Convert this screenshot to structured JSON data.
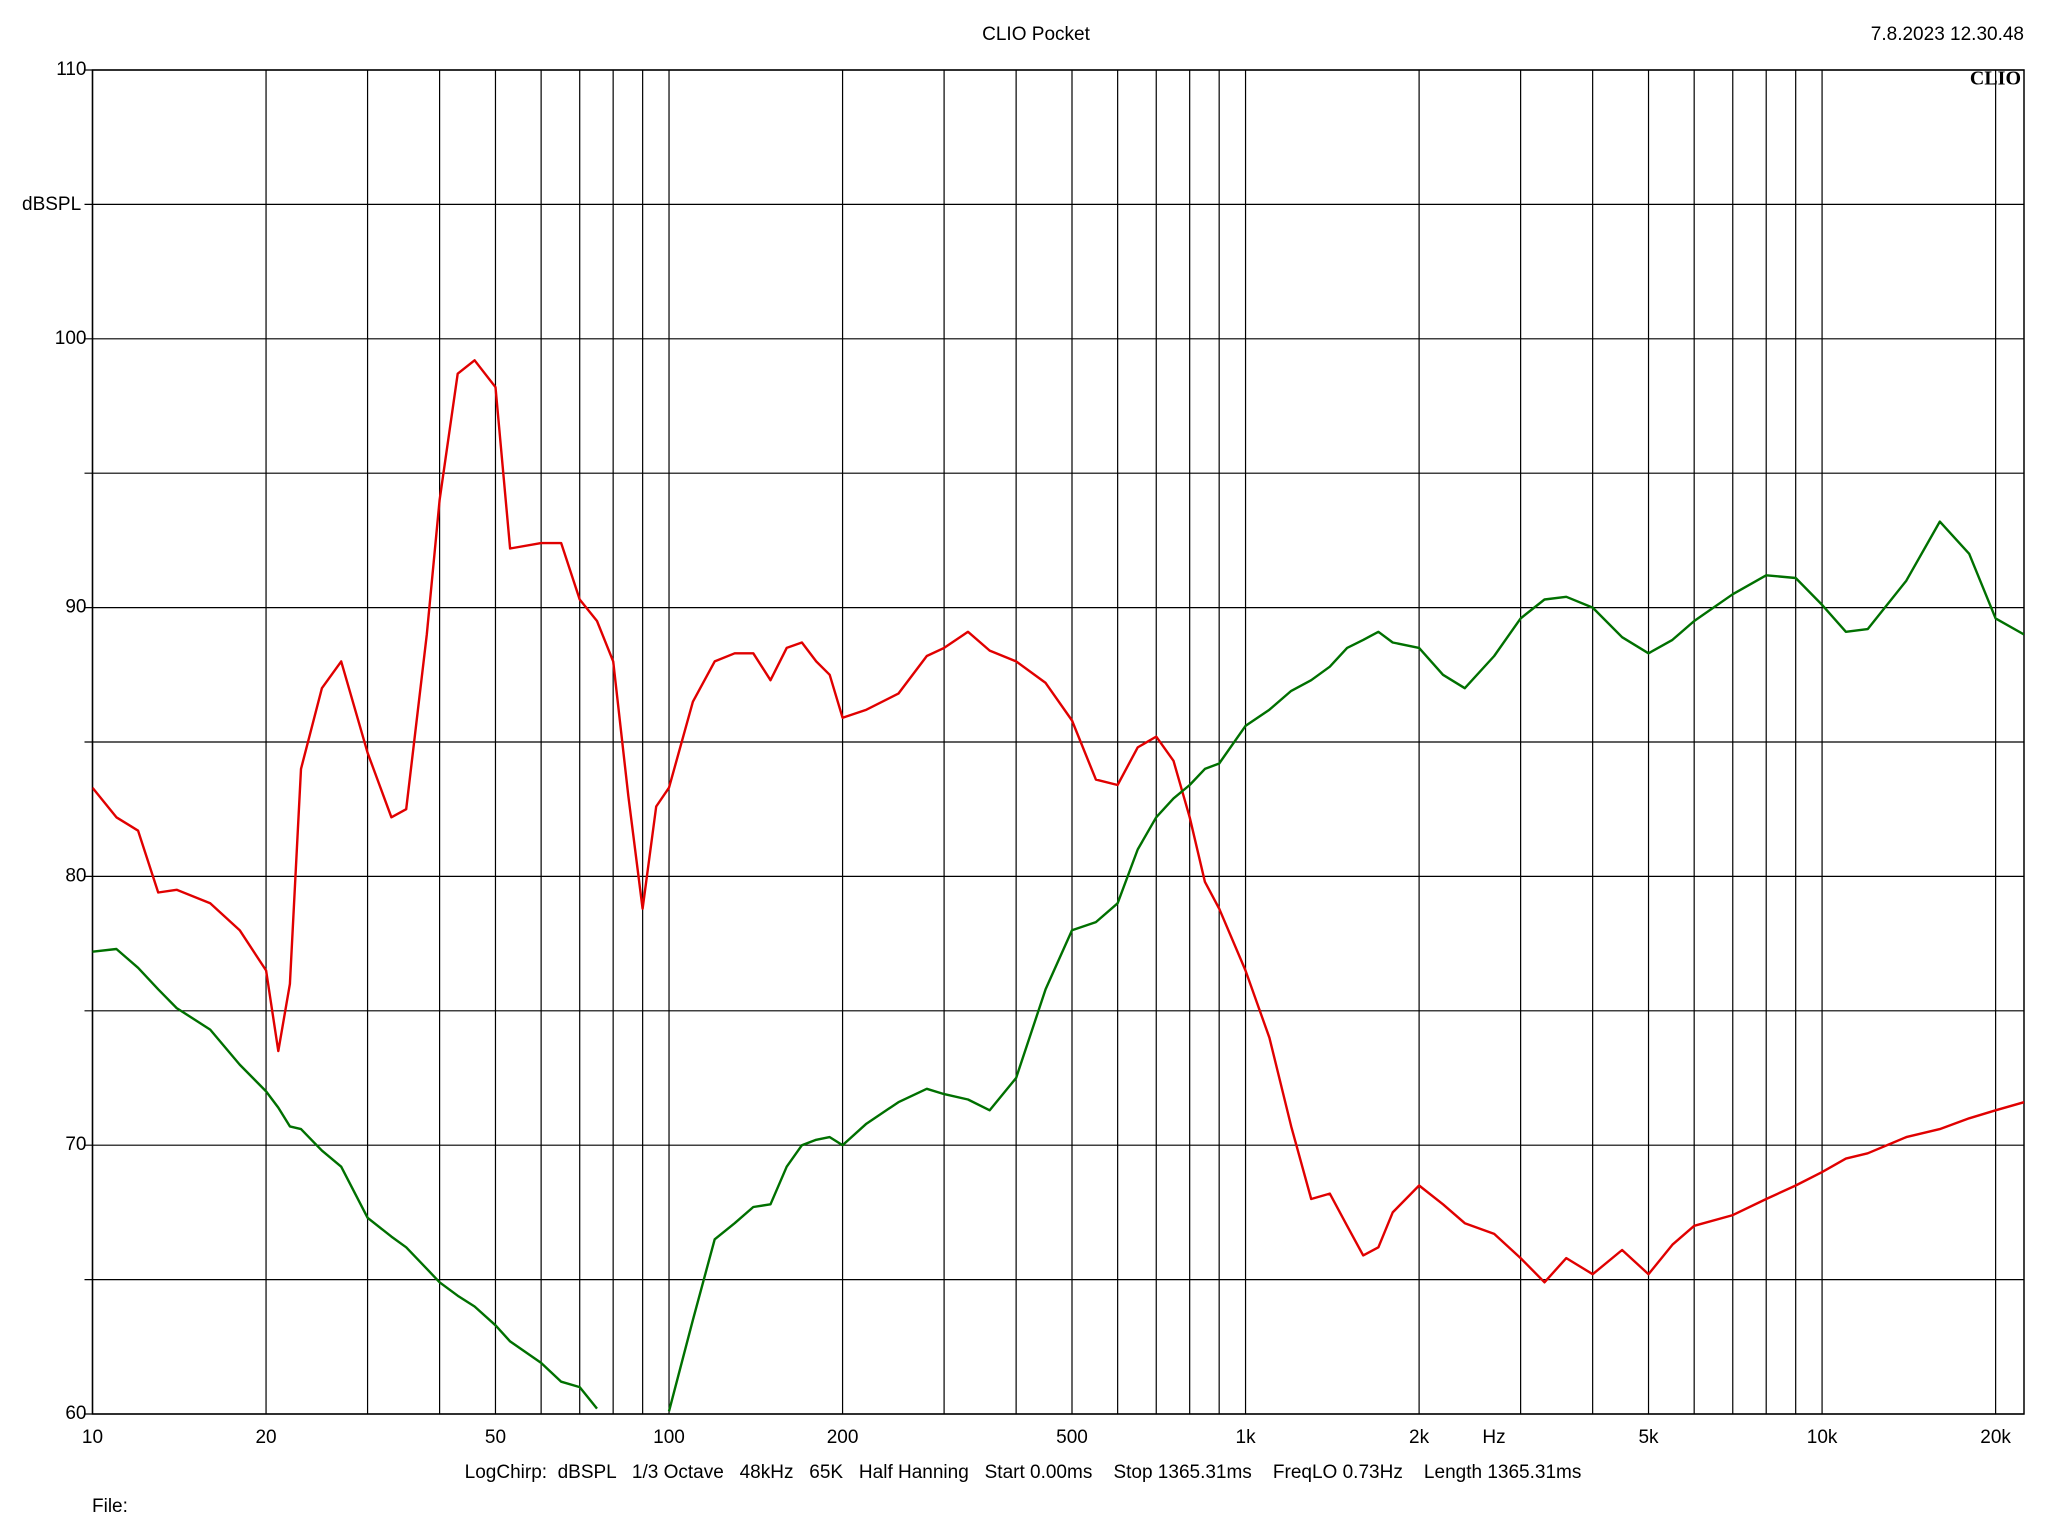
{
  "chart_data": {
    "type": "line",
    "title": "CLIO Pocket",
    "timestamp": "7.8.2023 12.30.48",
    "logo": "CLIO",
    "y_label": "dBSPL",
    "x_label": "Hz",
    "footer": "LogChirp:  dBSPL   1/3 Octave   48kHz   65K   Half Hanning   Start 0.00ms    Stop 1365.31ms    FreqLO 0.73Hz    Length 1365.31ms",
    "file_label": "File:",
    "x_log": true,
    "grid": true,
    "xlim": [
      10,
      22400
    ],
    "ylim": [
      60,
      110
    ],
    "xticks": [
      10,
      20,
      50,
      100,
      200,
      500,
      {
        "value": 1000,
        "label": "1k"
      },
      {
        "value": 2000,
        "label": "2k"
      },
      {
        "value": 5000,
        "label": "5k"
      },
      {
        "value": 10000,
        "label": "10k"
      },
      {
        "value": 20000,
        "label": "20k"
      }
    ],
    "xminor_ticks": [
      30,
      40,
      60,
      70,
      80,
      90,
      300,
      400,
      600,
      700,
      800,
      900,
      3000,
      4000,
      6000,
      7000,
      8000,
      9000
    ],
    "yticks": [
      60,
      70,
      80,
      90,
      100,
      110
    ],
    "yminor_ticks": [
      65,
      75,
      85,
      95,
      105
    ],
    "x": [
      10,
      11,
      12,
      13,
      14,
      16,
      18,
      20,
      21,
      22,
      23,
      25,
      27,
      30,
      33,
      35,
      38,
      40,
      43,
      46,
      50,
      53,
      60,
      65,
      70,
      75,
      80,
      85,
      90,
      95,
      100,
      110,
      120,
      130,
      140,
      150,
      160,
      170,
      180,
      190,
      200,
      220,
      250,
      280,
      300,
      330,
      360,
      400,
      450,
      500,
      550,
      600,
      650,
      700,
      750,
      800,
      850,
      900,
      1000,
      1100,
      1200,
      1300,
      1400,
      1500,
      1600,
      1700,
      1800,
      2000,
      2200,
      2400,
      2700,
      3000,
      3300,
      3600,
      4000,
      4500,
      5000,
      5500,
      6000,
      7000,
      8000,
      9000,
      10000,
      11000,
      12000,
      14000,
      16000,
      18000,
      20000,
      22400
    ],
    "series": [
      {
        "color": "#e00000",
        "values": [
          83.3,
          82.2,
          81.7,
          79.4,
          79.5,
          79.0,
          78.0,
          76.5,
          73.5,
          76.0,
          84.0,
          87.0,
          88.0,
          84.6,
          82.2,
          82.5,
          89.0,
          94.0,
          98.7,
          99.2,
          98.2,
          92.2,
          92.4,
          92.4,
          90.3,
          89.5,
          88.0,
          83.0,
          78.8,
          82.6,
          83.3,
          86.5,
          88.0,
          88.3,
          88.3,
          87.3,
          88.5,
          88.7,
          88.0,
          87.5,
          85.9,
          86.2,
          86.8,
          88.2,
          88.5,
          89.1,
          88.4,
          88.0,
          87.2,
          85.8,
          83.6,
          83.4,
          84.8,
          85.2,
          84.3,
          82.2,
          79.8,
          78.8,
          76.5,
          74.0,
          70.7,
          68.0,
          68.2,
          67.0,
          65.9,
          66.2,
          67.5,
          68.5,
          67.8,
          67.1,
          66.7,
          65.8,
          64.9,
          65.8,
          65.2,
          66.1,
          65.2,
          66.3,
          67.0,
          67.4,
          68.0,
          68.5,
          69.0,
          69.5,
          69.7,
          70.3,
          70.6,
          71.0,
          71.3,
          71.6
        ]
      },
      {
        "color": "#007000",
        "values": [
          77.2,
          77.3,
          76.6,
          75.8,
          75.1,
          74.3,
          73.0,
          72.0,
          71.4,
          70.7,
          70.6,
          69.8,
          69.2,
          67.3,
          66.6,
          66.2,
          65.4,
          64.9,
          64.4,
          64.0,
          63.3,
          62.7,
          61.9,
          61.2,
          61.0,
          60.2,
          null,
          null,
          null,
          null,
          60.1,
          63.5,
          66.5,
          67.1,
          67.7,
          67.8,
          69.2,
          70.0,
          70.2,
          70.3,
          70.0,
          70.8,
          71.6,
          72.1,
          71.9,
          71.7,
          71.3,
          72.5,
          75.8,
          78.0,
          78.3,
          79.0,
          81.0,
          82.2,
          82.9,
          83.4,
          84.0,
          84.2,
          85.6,
          86.2,
          86.9,
          87.3,
          87.8,
          88.5,
          88.8,
          89.1,
          88.7,
          88.5,
          87.5,
          87.0,
          88.2,
          89.6,
          90.3,
          90.4,
          90.0,
          88.9,
          88.3,
          88.8,
          89.5,
          90.5,
          91.2,
          91.1,
          90.1,
          89.1,
          89.2,
          91.0,
          93.2,
          92.0,
          89.6,
          89.0
        ]
      }
    ]
  }
}
